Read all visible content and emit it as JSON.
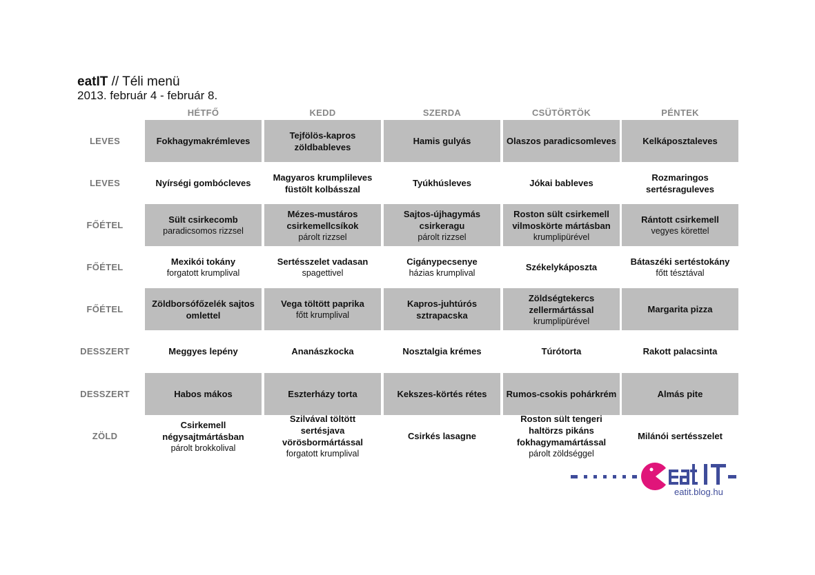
{
  "header": {
    "brand": "eatIT",
    "title_rest": " // Téli menü",
    "date_range": "2013. február 4 - február 8."
  },
  "days": [
    "HÉTFŐ",
    "KEDD",
    "SZERDA",
    "CSÜTÖRTÖK",
    "PÉNTEK"
  ],
  "rows": [
    {
      "label": "LEVES",
      "cells": [
        {
          "dish": "Fokhagymakrémleves",
          "side": ""
        },
        {
          "dish": "Tejfölös-kapros zöldbableves",
          "side": ""
        },
        {
          "dish": "Hamis gulyás",
          "side": ""
        },
        {
          "dish": "Olaszos paradicsomleves",
          "side": ""
        },
        {
          "dish": "Kelkáposztaleves",
          "side": ""
        }
      ]
    },
    {
      "label": "LEVES",
      "cells": [
        {
          "dish": "Nyírségi gombócleves",
          "side": ""
        },
        {
          "dish": "Magyaros krumplileves füstölt kolbásszal",
          "side": ""
        },
        {
          "dish": "Tyúkhúsleves",
          "side": ""
        },
        {
          "dish": "Jókai bableves",
          "side": ""
        },
        {
          "dish": "Rozmaringos sertésraguleves",
          "side": ""
        }
      ]
    },
    {
      "label": "FŐÉTEL",
      "cells": [
        {
          "dish": "Sült csirkecomb",
          "side": "paradicsomos rizzsel"
        },
        {
          "dish": "Mézes-mustáros csirkemellcsíkok",
          "side": "párolt rizzsel"
        },
        {
          "dish": "Sajtos-újhagymás csirkeragu",
          "side": "párolt rizzsel"
        },
        {
          "dish": "Roston sült csirkemell vilmoskörte mártásban",
          "side": "krumplipürével"
        },
        {
          "dish": "Rántott csirkemell",
          "side": "vegyes körettel"
        }
      ]
    },
    {
      "label": "FŐÉTEL",
      "cells": [
        {
          "dish": "Mexikói tokány",
          "side": "forgatott krumplival"
        },
        {
          "dish": "Sertésszelet vadasan",
          "side": "spagettivel"
        },
        {
          "dish": "Cigánypecsenye",
          "side": "házias krumplival"
        },
        {
          "dish": "Székelykáposzta",
          "side": ""
        },
        {
          "dish": "Bátaszéki sertéstokány",
          "side": "főtt tésztával"
        }
      ]
    },
    {
      "label": "FŐÉTEL",
      "cells": [
        {
          "dish": "Zöldborsófőzelék sajtos omlettel",
          "side": ""
        },
        {
          "dish": "Vega töltött paprika",
          "side": "főtt krumplival"
        },
        {
          "dish": "Kapros-juhtúrós sztrapacska",
          "side": ""
        },
        {
          "dish": "Zöldségtekercs zellermártással",
          "side": "krumplipürével"
        },
        {
          "dish": "Margarita pizza",
          "side": ""
        }
      ]
    },
    {
      "label": "DESSZERT",
      "cells": [
        {
          "dish": "Meggyes lepény",
          "side": ""
        },
        {
          "dish": "Ananászkocka",
          "side": ""
        },
        {
          "dish": "Nosztalgia krémes",
          "side": ""
        },
        {
          "dish": "Túrótorta",
          "side": ""
        },
        {
          "dish": "Rakott palacsinta",
          "side": ""
        }
      ]
    },
    {
      "label": "DESSZERT",
      "cells": [
        {
          "dish": "Habos mákos",
          "side": ""
        },
        {
          "dish": "Eszterházy torta",
          "side": ""
        },
        {
          "dish": "Kekszes-körtés rétes",
          "side": ""
        },
        {
          "dish": "Rumos-csokis pohárkrém",
          "side": ""
        },
        {
          "dish": "Almás pite",
          "side": ""
        }
      ]
    },
    {
      "label": "ZÖLD",
      "cells": [
        {
          "dish": "Csirkemell négysajtmártásban",
          "side": "párolt brokkolival"
        },
        {
          "dish": "Szilvával töltött sertésjava vörösbormártással",
          "side": "forgatott krumplival"
        },
        {
          "dish": "Csirkés lasagne",
          "side": ""
        },
        {
          "dish": "Roston sült tengeri haltörzs pikáns fokhagymamártással",
          "side": "párolt zöldséggel"
        },
        {
          "dish": "Milánói sertésszelet",
          "side": ""
        }
      ]
    }
  ],
  "logo": {
    "text": "eat IT",
    "url": "eatit.blog.hu",
    "brand_color": "#3f4c9a",
    "accent_color": "#e0157a"
  }
}
